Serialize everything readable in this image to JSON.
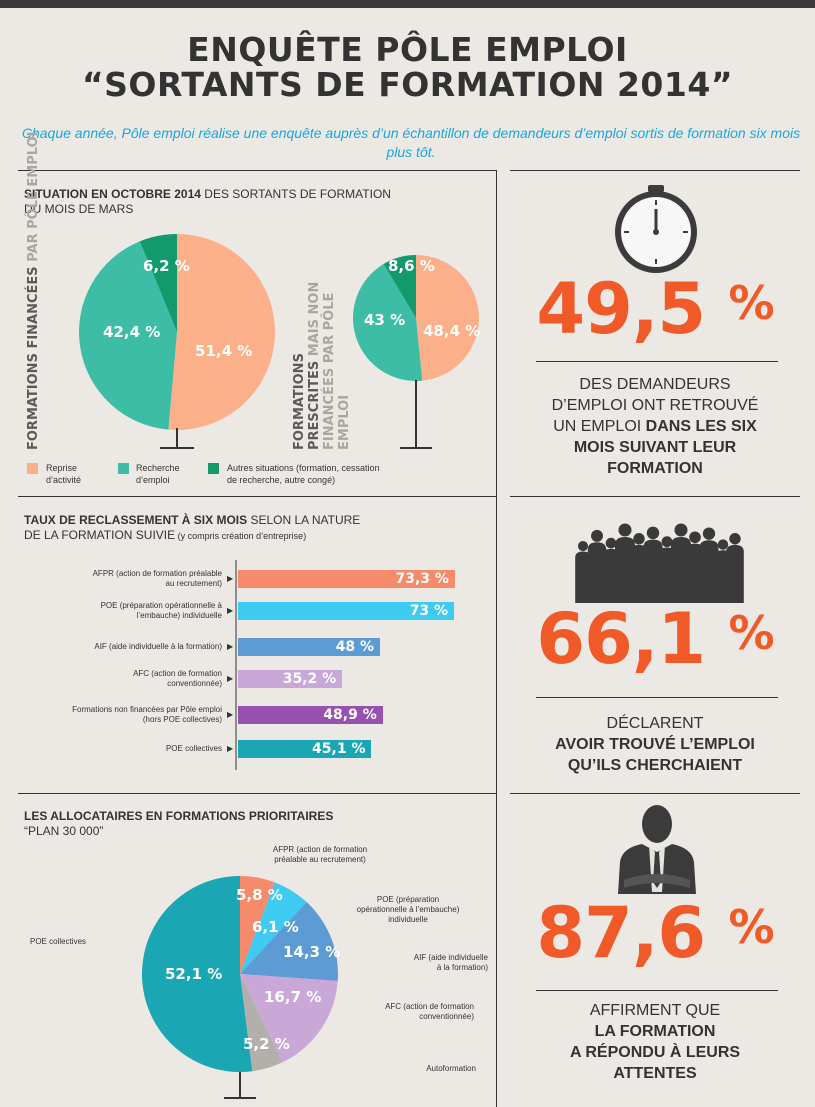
{
  "header": {
    "title_line1": "ENQUÊTE PÔLE EMPLOI",
    "title_line2": "“SORTANTS DE FORMATION 2014”",
    "intro": "Chaque année, Pôle emploi réalise une enquête auprès d’un échantillon de demandeurs d’emploi sortis de formation six mois plus tôt."
  },
  "section1": {
    "title_bold": "SITUATION EN OCTOBRE 2014",
    "title_rest": " DES SORTANTS DE FORMATION",
    "title_line2": "DU MOIS DE MARS",
    "left_label_dark": "FORMATIONS FINANCÉES",
    "left_label_light": " PAR PÔLE EMPLOI",
    "right_label_dark": "FORMATIONS PRESCRITES",
    "right_label_light": " MAIS NON FINANCÉES PAR PÔLE EMPLOI"
  },
  "section2": {
    "title_bold": "TAUX DE RECLASSEMENT À SIX MOIS",
    "title_rest": " SELON LA NATURE",
    "title_line2": "DE LA FORMATION SUIVIE",
    "title_small": " (y compris création d’entreprise)"
  },
  "section3": {
    "title_line1": "LES ALLOCATAIRES EN FORMATIONS PRIORITAIRES",
    "title_line2": "“PLAN 30 000”"
  },
  "right": {
    "stat1_value": "49,5",
    "stat1_line1": "DES DEMANDEURS",
    "stat1_line2": "D’EMPLOI ONT RETROUVÉ",
    "stat1_line3a": "UN EMPLOI ",
    "stat1_line3b": "DANS LES SIX",
    "stat1_line4": "MOIS SUIVANT LEUR",
    "stat1_line5": "FORMATION",
    "stat2_value": "66,1",
    "stat2_line1": "DÉCLARENT",
    "stat2_line2": "AVOIR TROUVÉ L’EMPLOI",
    "stat2_line3": "QU’ILS CHERCHAIENT",
    "stat3_value": "87,6",
    "stat3_line1": "AFFIRMENT QUE",
    "stat3_line2": "LA FORMATION",
    "stat3_line3": "A RÉPONDU À LEURS",
    "stat3_line4": "ATTENTES",
    "pct_symbol": "%"
  },
  "colors": {
    "orange": "#f05a28",
    "blue_text": "#1aa6d9",
    "salmon": "#fcb08a",
    "teal": "#3dbda5",
    "darkgreen": "#129a6c"
  },
  "chart_data": [
    {
      "type": "pie",
      "name": "FORMATIONS FINANCÉES PAR PÔLE EMPLOI",
      "categories": [
        "Reprise d’activité",
        "Recherche d’emploi",
        "Autres situations (formation, cessation de recherche, autre congé)"
      ],
      "values": [
        51.4,
        42.4,
        6.2
      ],
      "labels": [
        "51,4 %",
        "42,4 %",
        "6,2 %"
      ],
      "colors": [
        "#fcb08a",
        "#3dbda5",
        "#129a6c"
      ]
    },
    {
      "type": "pie",
      "name": "FORMATIONS PRESCRITES MAIS NON FINANCÉES PAR PÔLE EMPLOI",
      "categories": [
        "Reprise d’activité",
        "Recherche d’emploi",
        "Autres situations (formation, cessation de recherche, autre congé)"
      ],
      "values": [
        48.4,
        43,
        8.6
      ],
      "labels": [
        "48,4 %",
        "43 %",
        "8,6 %"
      ],
      "colors": [
        "#fcb08a",
        "#3dbda5",
        "#129a6c"
      ],
      "legend": {
        "placement": "bottom",
        "items": [
          {
            "line1": "Reprise",
            "line2": "d’activité",
            "color": "#fcb08a"
          },
          {
            "line1": "Recherche",
            "line2": "d’emploi",
            "color": "#3dbda5"
          },
          {
            "line1": "Autres situations (formation, cessation",
            "line2": "de recherche, autre congé)",
            "color": "#129a6c"
          }
        ]
      }
    },
    {
      "type": "bar",
      "orientation": "horizontal",
      "categories": [
        {
          "line1": "AFPR (action de formation préalable",
          "line2": "au recrutement)"
        },
        {
          "line1": "POE (préparation opérationnelle à",
          "line2": "l’embauche) individuelle"
        },
        {
          "line1": "AIF (aide individuelle à la formation)",
          "line2": ""
        },
        {
          "line1": "AFC (action de formation",
          "line2": "conventionnée)"
        },
        {
          "line1": "Formations non financées par Pôle emploi",
          "line2": "(hors POE collectives)"
        },
        {
          "line1": "POE collectives",
          "line2": ""
        }
      ],
      "values": [
        73.3,
        73,
        48,
        35.2,
        48.9,
        45.1
      ],
      "labels": [
        "73,3 %",
        "73 %",
        "48 %",
        "35,2 %",
        "48,9 %",
        "45,1 %"
      ],
      "colors": [
        "#f68b6c",
        "#3fcaf2",
        "#5c9bd3",
        "#c9a8d7",
        "#9751b0",
        "#1aa6b2"
      ],
      "xlim": [
        0,
        100
      ]
    },
    {
      "type": "pie",
      "categories": [
        "AFPR (action de formation préalable au recrutement)",
        "POE (préparation opérationnelle à l’embauche) individuelle",
        "AIF (aide individuelle à la formation)",
        "AFC (action de formation conventionnée)",
        "Autoformation",
        "POE collectives"
      ],
      "values": [
        5.8,
        6.1,
        14.3,
        16.7,
        5.2,
        52.1
      ],
      "labels": [
        "5,8 %",
        "6,1 %",
        "14,3 %",
        "16,7 %",
        "5,2 %",
        "52,1 %"
      ],
      "colors": [
        "#f68b6c",
        "#3fcaf2",
        "#5c9bd3",
        "#c9a8d7",
        "#b3b0ac",
        "#1aa6b2"
      ],
      "callouts": [
        {
          "line1": "AFPR (action de formation",
          "line2": "préalable au recrutement)",
          "line3": ""
        },
        {
          "line1": "POE (préparation",
          "line2": "opérationnelle à l’embauche)",
          "line3": "individuelle"
        },
        {
          "line1": "AIF (aide individuelle",
          "line2": "à la formation)",
          "line3": ""
        },
        {
          "line1": "AFC (action de formation",
          "line2": "conventionnée)",
          "line3": ""
        },
        {
          "line1": "Autoformation",
          "line2": "",
          "line3": ""
        },
        {
          "line1": "POE collectives",
          "line2": "",
          "line3": ""
        }
      ]
    }
  ]
}
